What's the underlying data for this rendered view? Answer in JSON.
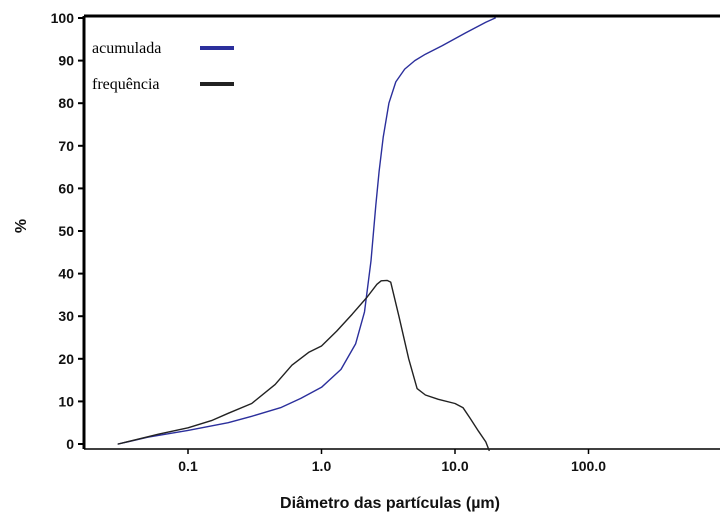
{
  "chart_data": {
    "type": "line",
    "title": "",
    "xlabel": "Diâmetro das partículas (µm)",
    "ylabel": "%",
    "x_scale": "log",
    "xlim": [
      0.03,
      500
    ],
    "ylim": [
      -2,
      100
    ],
    "x_ticks": [
      0.1,
      1.0,
      10.0,
      100.0
    ],
    "x_tick_labels": [
      "0.1",
      "1.0",
      "10.0",
      "100.0"
    ],
    "y_ticks": [
      0,
      10,
      20,
      30,
      40,
      50,
      60,
      70,
      80,
      90,
      100
    ],
    "y_tick_labels": [
      "0",
      "10",
      "20",
      "30",
      "40",
      "50",
      "60",
      "70",
      "80",
      "90",
      "100"
    ],
    "grid": false,
    "legend_position": "top-left",
    "series": [
      {
        "name": "acumulada",
        "color": "#2b2f9c",
        "points": [
          [
            0.03,
            0
          ],
          [
            0.05,
            1.6
          ],
          [
            0.1,
            3.2
          ],
          [
            0.2,
            5
          ],
          [
            0.3,
            6.5
          ],
          [
            0.5,
            8.6
          ],
          [
            0.7,
            10.7
          ],
          [
            1.0,
            13.3
          ],
          [
            1.4,
            17.5
          ],
          [
            1.8,
            23.5
          ],
          [
            2.1,
            31
          ],
          [
            2.35,
            43
          ],
          [
            2.55,
            56
          ],
          [
            2.7,
            64
          ],
          [
            2.9,
            72
          ],
          [
            3.2,
            80
          ],
          [
            3.6,
            85
          ],
          [
            4.2,
            88
          ],
          [
            5.0,
            90
          ],
          [
            6.0,
            91.5
          ],
          [
            8.0,
            93.5
          ],
          [
            12.0,
            96.5
          ],
          [
            17.0,
            99
          ],
          [
            20.0,
            100
          ]
        ]
      },
      {
        "name": "frequência",
        "color": "#222222",
        "points": [
          [
            0.03,
            0
          ],
          [
            0.06,
            2.3
          ],
          [
            0.1,
            3.8
          ],
          [
            0.15,
            5.5
          ],
          [
            0.2,
            7.2
          ],
          [
            0.3,
            9.5
          ],
          [
            0.45,
            14
          ],
          [
            0.6,
            18.5
          ],
          [
            0.8,
            21.5
          ],
          [
            1.0,
            23
          ],
          [
            1.3,
            26.5
          ],
          [
            1.7,
            30.5
          ],
          [
            2.2,
            34.5
          ],
          [
            2.6,
            37.5
          ],
          [
            2.8,
            38.3
          ],
          [
            3.1,
            38.4
          ],
          [
            3.3,
            38
          ],
          [
            3.8,
            30
          ],
          [
            4.5,
            20
          ],
          [
            5.2,
            13
          ],
          [
            6.0,
            11.5
          ],
          [
            7.5,
            10.5
          ],
          [
            10.0,
            9.5
          ],
          [
            11.5,
            8.5
          ],
          [
            13.0,
            6
          ],
          [
            15.0,
            3
          ],
          [
            17.0,
            0.5
          ],
          [
            18.0,
            -1.5
          ]
        ]
      }
    ]
  }
}
